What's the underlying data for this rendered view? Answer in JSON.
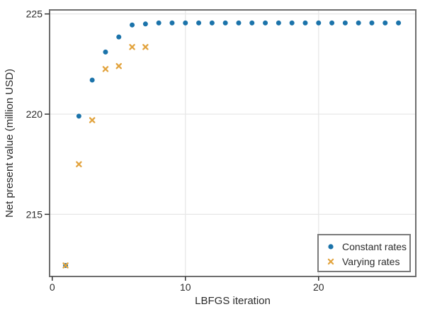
{
  "chart_data": {
    "type": "scatter",
    "title": "",
    "xlabel": "LBFGS iteration",
    "ylabel": "Net present value (million USD)",
    "xticks": [
      0,
      10,
      20
    ],
    "yticks": [
      215,
      220,
      225
    ],
    "xgrid": [
      10,
      20
    ],
    "ygrid": [
      215,
      220,
      225
    ],
    "xlim": [
      -0.2,
      27.3
    ],
    "ylim": [
      211.9,
      225.2
    ],
    "grid": true,
    "legend_position": "lower right",
    "series": [
      {
        "name": "Constant rates",
        "marker": "circle",
        "color": "#1b73aa",
        "x": [
          1,
          2,
          3,
          4,
          5,
          6,
          7,
          8,
          9,
          10,
          11,
          12,
          13,
          14,
          15,
          16,
          17,
          18,
          19,
          20,
          21,
          22,
          23,
          24,
          25,
          26
        ],
        "y": [
          212.45,
          219.9,
          221.7,
          223.1,
          223.85,
          224.45,
          224.5,
          224.55,
          224.55,
          224.55,
          224.55,
          224.55,
          224.55,
          224.55,
          224.55,
          224.55,
          224.55,
          224.55,
          224.55,
          224.55,
          224.55,
          224.55,
          224.55,
          224.55,
          224.55,
          224.55
        ]
      },
      {
        "name": "Varying rates",
        "marker": "x",
        "color": "#e2a33d",
        "x": [
          1,
          2,
          3,
          4,
          5,
          6,
          7
        ],
        "y": [
          212.45,
          217.5,
          219.7,
          222.25,
          222.4,
          223.35,
          223.35
        ]
      }
    ]
  },
  "colors": {
    "background": "#ffffff",
    "spine": "#6e6e6e",
    "grid": "#e7e7e7",
    "tick": "#333333",
    "text": "#2b2b2b",
    "legend_border": "#7a7a7a",
    "series_blue": "#1b73aa",
    "series_orange": "#e2a33d"
  }
}
